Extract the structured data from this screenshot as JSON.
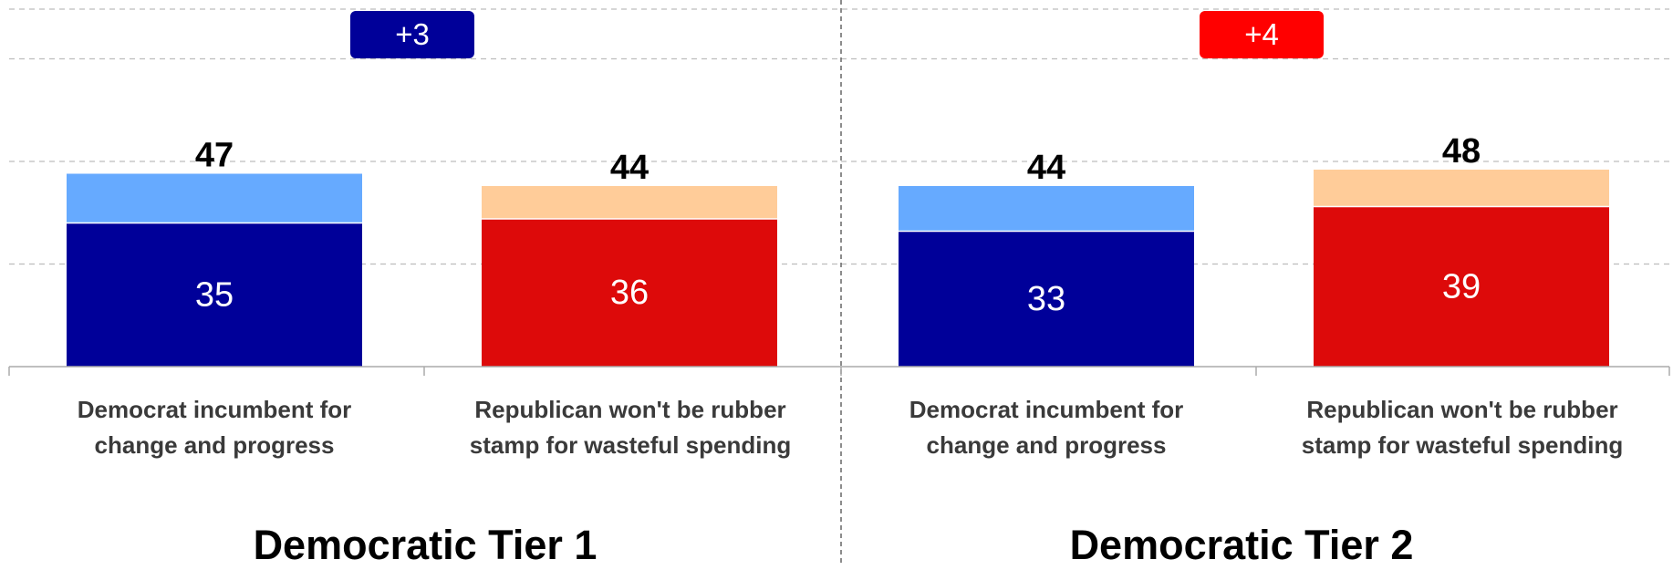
{
  "colors": {
    "dem_base": "#000099",
    "dem_soft": "#66aaff",
    "rep_base": "#dd0a0a",
    "rep_soft": "#ffcc99",
    "gridline": "#bdbdbd",
    "axis": "#aaaaaa",
    "label_text": "#3a3a3a"
  },
  "chart_data": [
    {
      "type": "bar",
      "stacked": true,
      "title": "Democratic Tier 1",
      "margin_badge": {
        "label": "+3",
        "color": "#000099"
      },
      "categories": [
        [
          "Democrat incumbent for",
          "change and progress"
        ],
        [
          "Republican won't be rubber",
          "stamp for wasteful spending"
        ]
      ],
      "base_values": [
        35,
        36
      ],
      "totals": [
        47,
        44
      ],
      "ylim": [
        0,
        60
      ],
      "grid": true,
      "legend": "none"
    },
    {
      "type": "bar",
      "stacked": true,
      "title": "Democratic Tier 2",
      "margin_badge": {
        "label": "+4",
        "color": "#ff0000"
      },
      "categories": [
        [
          "Democrat incumbent for",
          "change and progress"
        ],
        [
          "Republican won't be rubber",
          "stamp for wasteful spending"
        ]
      ],
      "base_values": [
        33,
        39
      ],
      "totals": [
        44,
        48
      ],
      "ylim": [
        0,
        60
      ],
      "grid": true,
      "legend": "none"
    }
  ]
}
